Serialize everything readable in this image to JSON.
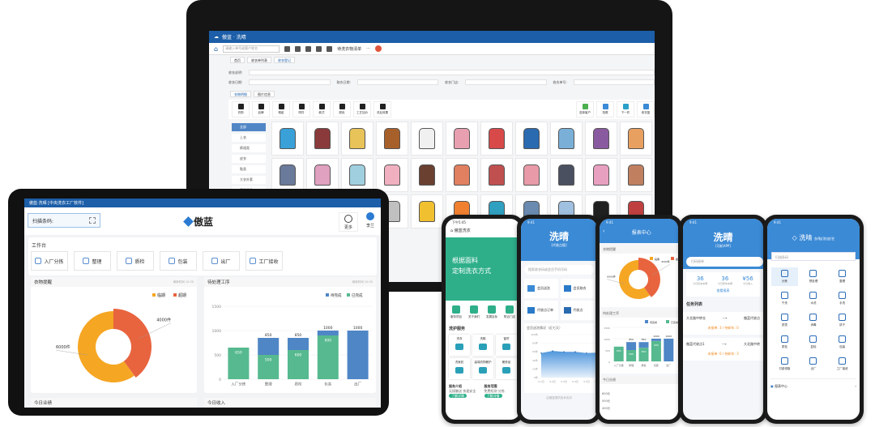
{
  "desktop": {
    "window_title": "傲蓝 · 洗晴",
    "search_placeholder": "请输入单号或客户姓名",
    "toolbar_extra": "待洗衣物清单",
    "tabs": [
      "首页",
      "收衣单列表",
      "收衣登记"
    ],
    "form": {
      "remark": "收衣说明:",
      "date": "收衣日期:",
      "pickup": "取衣日期:",
      "store": "收衣门店:",
      "order": "收衣单号:"
    },
    "subtabs": [
      "衣物明细",
      "图片信息"
    ],
    "tools": [
      "衣物",
      "品牌",
      "瑕疵",
      "附件",
      "款式",
      "颜色",
      "工艺加价",
      "洗后效果"
    ],
    "right_tools": [
      "选择客户",
      "拍照",
      "下一件",
      "收衣篮"
    ],
    "categories": [
      "全部",
      "上衣",
      "裤裙类",
      "皮衣",
      "鞋类",
      "大衣外套",
      "家居用品"
    ],
    "clothing_colors": [
      "#3aa0d8",
      "#8a3a3a",
      "#e8c35a",
      "#a8602a",
      "#f0f0f0",
      "#e8a0b0",
      "#d84a4a",
      "#2a6ab0",
      "#7ab0d8",
      "#8a5aa0",
      "#e8a060",
      "#6a7a9a",
      "#e0a0c0",
      "#a0d0e0",
      "#f0b0c0",
      "#6a4030",
      "#e08060",
      "#c05050",
      "#e89aa8",
      "#4a5060",
      "#e8a0c0",
      "#c08060",
      "#e8e8e8",
      "#a0a0a0",
      "#40a0c0",
      "#c0c0c0",
      "#f0c030",
      "#f08030",
      "#30a0c0",
      "#6a8ab0",
      "#a0c0e0",
      "#202020",
      "#c04040",
      "#e0b070"
    ]
  },
  "tablet": {
    "window_title": "傲蓝·洗晴 [中央洗衣工厂软件]",
    "scan_label": "扫描条码:",
    "logo": "傲蓝",
    "more_label": "更多",
    "user_name": "李兰",
    "workbench_title": "工作台",
    "workbench_buttons": [
      "入厂分拣",
      "整理",
      "质检",
      "包装",
      "出厂",
      "工厂接收"
    ],
    "card_updated": "刷新时间 10:30",
    "bottom_cards": [
      "今日业绩",
      "今日收入"
    ]
  },
  "chart_data": [
    {
      "type": "pie",
      "title": "衣物提醒",
      "legend": [
        "临期",
        "超期"
      ],
      "legend_position": "top-right",
      "values": [
        6000,
        4000
      ],
      "labels": [
        "6000件",
        "4000件"
      ],
      "colors": [
        "#f5a623",
        "#e8643f"
      ],
      "donut": true
    },
    {
      "type": "bar",
      "stacked": true,
      "title": "待处理工序",
      "legend_position": "top-right",
      "categories": [
        "入厂分拣",
        "整理",
        "质检",
        "包装",
        "出厂"
      ],
      "series": [
        {
          "name": "待完成",
          "values": [
            0,
            350,
            250,
            100,
            1000
          ],
          "color": "#4f86c6"
        },
        {
          "name": "已完成",
          "values": [
            650,
            500,
            600,
            900,
            0
          ],
          "color": "#56b98f"
        }
      ],
      "totals": [
        650,
        850,
        850,
        1000,
        1000
      ],
      "ylim": [
        0,
        1500
      ],
      "yticks": [
        0,
        500,
        1000,
        1500
      ],
      "grid": true
    },
    {
      "type": "area",
      "title": "会员送洗情况（近七天）",
      "x": [
        "9.1日",
        "9.2日",
        "9.3日",
        "9.4日",
        "9.5日",
        "9.6日"
      ],
      "values": [
        57,
        62,
        60,
        60,
        57,
        58
      ],
      "yticks": [
        "0件",
        "20件",
        "40件",
        "60件",
        "80件",
        "100件"
      ],
      "ylim": [
        0,
        100
      ],
      "color": "#4f96dc"
    }
  ],
  "phone1": {
    "time": "下午5:45",
    "title": "傲蓝洗衣",
    "banner_line1": "根据面料",
    "banner_line2": "定制洗衣方式",
    "quick": [
      "服务项目",
      "关于我们",
      "发展目标",
      "附近门店"
    ],
    "section": "洗护服务",
    "services": [
      "洗衣",
      "洗鞋",
      "窗帘",
      "洗家纺",
      "高端衣物奢护",
      "奢侈品"
    ],
    "intro_title": "服务介绍",
    "intro_text": "无接触送 快速安全",
    "range_title": "服务范围",
    "range_text": "免费检测 分拣",
    "detail_btn": "了解详情"
  },
  "phone2": {
    "time": "9:41",
    "brand": "洗晴",
    "sub": "[代收点版]",
    "search": "搜索收衣码或会员手机号码",
    "tiles": [
      "会员送洗",
      "会员取衣",
      "代收点订单",
      "代收点"
    ],
    "footer": "由傲蓝提供技术支持"
  },
  "phone3": {
    "time": "9:41",
    "title": "报表中心",
    "card1": "衣物提醒",
    "card2": "待处理工序",
    "card3": "今日业绩",
    "card3_ticks": [
      "600元",
      "500元",
      "400元"
    ]
  },
  "phone4": {
    "time": "9:41",
    "brand": "洗晴",
    "sub": "[司机APP]",
    "search": "扫码接单",
    "stats": [
      {
        "value": "36",
        "label": "今日接车车辆"
      },
      {
        "value": "36",
        "label": "今日卸车车辆"
      },
      {
        "value": "¥56",
        "label": "今日收入"
      }
    ],
    "report_link": "查看报表",
    "task_title": "任务列表",
    "tasks": [
      {
        "from": "大北路中转仓",
        "to": "傲蓝代收点",
        "status": "未接单: 3 / 待卸车: 0"
      },
      {
        "from": "傲蓝代收点1",
        "to": "大北路中转",
        "status": "未接单: 0 / 待卸车: 3"
      }
    ]
  },
  "phone5": {
    "time": "9:41",
    "brand": "洗晴",
    "slogan": "衣/鞋/洗/皮/艺",
    "search": "扫描条码",
    "functions": [
      "分拣",
      "预处理",
      "整理",
      "干洗",
      "水洗",
      "手洗",
      "熨烫",
      "消毒",
      "烘干",
      "质检",
      "复检",
      "包装",
      "付费领取",
      "出厂",
      "工厂接收"
    ],
    "report": "报表中心"
  }
}
